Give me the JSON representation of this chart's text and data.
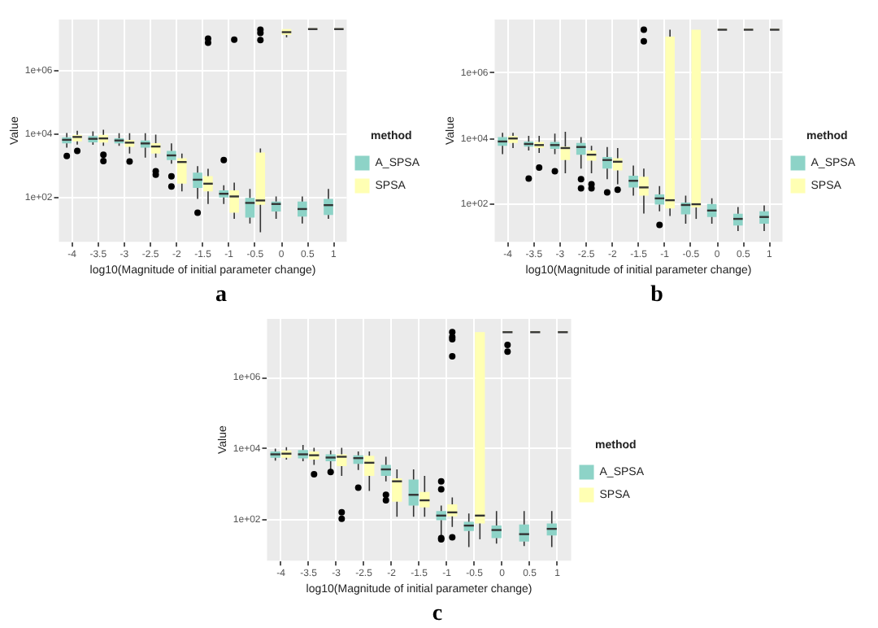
{
  "chart_data": [
    {
      "type": "box",
      "title": "a",
      "xlabel": "log10(Magnitude of initial parameter change)",
      "ylabel": "Value",
      "categories": [
        "-4",
        "-3.5",
        "-3",
        "-2.5",
        "-2",
        "-1.5",
        "-1",
        "-0.5",
        "0",
        "0.5",
        "1"
      ],
      "log": "y",
      "ylim": [
        4,
        40000000
      ],
      "yticks": [
        {
          "value": 100,
          "label": "1e+02"
        },
        {
          "value": 10000,
          "label": "1e+04"
        },
        {
          "value": 1000000,
          "label": "1e+06"
        }
      ],
      "grid": true,
      "legend": "right",
      "legend_title": "method",
      "series": [
        {
          "name": "A_SPSA",
          "color": "#8dd3c7",
          "boxes": [
            {
              "low": 3700,
              "q1": 5000,
              "median": 6500,
              "q3": 7800,
              "high": 10700,
              "outliers": [
                2000
              ]
            },
            {
              "low": 4500,
              "q1": 5400,
              "median": 7000,
              "q3": 8600,
              "high": 12000
            },
            {
              "low": 4200,
              "q1": 5000,
              "median": 6200,
              "q3": 7300,
              "high": 10500
            },
            {
              "low": 1800,
              "q1": 3700,
              "median": 5000,
              "q3": 6200,
              "high": 10500
            },
            {
              "low": 1150,
              "q1": 1500,
              "median": 2100,
              "q3": 2900,
              "high": 5000,
              "outliers": [
                460,
                220
              ]
            },
            {
              "low": 90,
              "q1": 200,
              "median": 360,
              "q3": 600,
              "high": 960,
              "outliers": [
                33
              ]
            },
            {
              "low": 62,
              "q1": 100,
              "median": 130,
              "q3": 166,
              "high": 240,
              "outliers": [
                1500
              ]
            },
            {
              "low": 15,
              "q1": 23,
              "median": 67,
              "q3": 96,
              "high": 185
            },
            {
              "low": 21,
              "q1": 36,
              "median": 62,
              "q3": 74,
              "high": 107
            },
            {
              "low": 15,
              "q1": 25,
              "median": 43,
              "q3": 74,
              "high": 107
            },
            {
              "low": 21,
              "q1": 28,
              "median": 57,
              "q3": 90,
              "high": 185
            }
          ]
        },
        {
          "name": "SPSA",
          "color": "#ffffb3",
          "boxes": [
            {
              "low": 4600,
              "q1": 5800,
              "median": 8000,
              "q3": 9300,
              "high": 12600,
              "outliers": [
                2900
              ]
            },
            {
              "low": 4200,
              "q1": 5300,
              "median": 7200,
              "q3": 9300,
              "high": 13500,
              "outliers": [
                2200,
                1400
              ]
            },
            {
              "low": 2400,
              "q1": 3900,
              "median": 5300,
              "q3": 6500,
              "high": 10500,
              "outliers": [
                1350
              ]
            },
            {
              "low": 1800,
              "q1": 2400,
              "median": 4000,
              "q3": 5100,
              "high": 9500,
              "outliers": [
                670,
                520
              ]
            },
            {
              "low": 155,
              "q1": 270,
              "median": 1300,
              "q3": 1700,
              "high": 2400
            },
            {
              "low": 62,
              "q1": 155,
              "median": 270,
              "q3": 470,
              "high": 800,
              "outliers": [
                10000000,
                7400000
              ]
            },
            {
              "low": 21,
              "q1": 33,
              "median": 107,
              "q3": 166,
              "high": 290,
              "outliers": [
                9300000
              ]
            },
            {
              "low": 8,
              "q1": 58,
              "median": 80,
              "q3": 2600,
              "high": 3500,
              "outliers": [
                19000000,
                15000000,
                9000000
              ]
            },
            {
              "low": 11000000,
              "q1": 13000000,
              "median": 16000000,
              "q3": 20000000,
              "high": 20000000
            },
            {
              "low": 20000000,
              "q1": 20000000,
              "median": 20000000,
              "q3": 20000000,
              "high": 20000000
            },
            {
              "low": 20000000,
              "q1": 20000000,
              "median": 20000000,
              "q3": 20000000,
              "high": 20000000
            }
          ]
        }
      ]
    },
    {
      "type": "box",
      "title": "b",
      "xlabel": "log10(Magnitude of initial parameter change)",
      "ylabel": "Value",
      "categories": [
        "-4",
        "-3.5",
        "-3",
        "-2.5",
        "-2",
        "-1.5",
        "-1",
        "-0.5",
        "0",
        "0.5",
        "1"
      ],
      "log": "y",
      "ylim": [
        7,
        43000000
      ],
      "yticks": [
        {
          "value": 100,
          "label": "1e+02"
        },
        {
          "value": 10000,
          "label": "1e+04"
        },
        {
          "value": 1000000,
          "label": "1e+06"
        }
      ],
      "grid": true,
      "legend": "right",
      "legend_title": "method",
      "series": [
        {
          "name": "A_SPSA",
          "color": "#8dd3c7",
          "boxes": [
            {
              "low": 3300,
              "q1": 6000,
              "median": 8100,
              "q3": 11000,
              "high": 15000
            },
            {
              "low": 4300,
              "q1": 5600,
              "median": 6800,
              "q3": 8100,
              "high": 12000,
              "outliers": [
                600
              ]
            },
            {
              "low": 3300,
              "q1": 4800,
              "median": 6300,
              "q3": 7800,
              "high": 14000,
              "outliers": [
                1000
              ]
            },
            {
              "low": 1200,
              "q1": 3200,
              "median": 5500,
              "q3": 7300,
              "high": 11000,
              "outliers": [
                570,
                300
              ]
            },
            {
              "low": 570,
              "q1": 1200,
              "median": 2200,
              "q3": 2700,
              "high": 5500,
              "outliers": [
                225
              ]
            },
            {
              "low": 180,
              "q1": 320,
              "median": 510,
              "q3": 730,
              "high": 1500
            },
            {
              "low": 60,
              "q1": 96,
              "median": 148,
              "q3": 195,
              "high": 350,
              "outliers": [
                23
              ]
            },
            {
              "low": 25,
              "q1": 48,
              "median": 93,
              "q3": 110,
              "high": 180
            },
            {
              "low": 25,
              "q1": 40,
              "median": 63,
              "q3": 100,
              "high": 150
            },
            {
              "low": 15,
              "q1": 22,
              "median": 35,
              "q3": 50,
              "high": 80
            },
            {
              "low": 15,
              "q1": 25,
              "median": 40,
              "q3": 60,
              "high": 90
            }
          ]
        },
        {
          "name": "SPSA",
          "color": "#ffffb3",
          "boxes": [
            {
              "low": 5100,
              "q1": 7300,
              "median": 10000,
              "q3": 12000,
              "high": 15000
            },
            {
              "low": 3600,
              "q1": 5100,
              "median": 6300,
              "q3": 7800,
              "high": 12000,
              "outliers": [
                1300
              ]
            },
            {
              "low": 870,
              "q1": 2200,
              "median": 5100,
              "q3": 5600,
              "high": 16000
            },
            {
              "low": 870,
              "q1": 2100,
              "median": 3200,
              "q3": 4300,
              "high": 6000,
              "outliers": [
                400,
                300
              ]
            },
            {
              "low": 400,
              "q1": 1050,
              "median": 1950,
              "q3": 2500,
              "high": 5100,
              "outliers": [
                270
              ]
            },
            {
              "low": 51,
              "q1": 180,
              "median": 320,
              "q3": 680,
              "high": 1200,
              "outliers": [
                21000000,
                9300000
              ]
            },
            {
              "low": 43,
              "q1": 73,
              "median": 130,
              "q3": 13000000,
              "high": 21000000
            },
            {
              "low": 35,
              "q1": 78,
              "median": 98,
              "q3": 21000000,
              "high": 21000000
            },
            {
              "low": 21000000,
              "q1": 21000000,
              "median": 21000000,
              "q3": 21000000,
              "high": 21000000
            },
            {
              "low": 21000000,
              "q1": 21000000,
              "median": 21000000,
              "q3": 21000000,
              "high": 21000000
            },
            {
              "low": 21000000,
              "q1": 21000000,
              "median": 21000000,
              "q3": 21000000,
              "high": 21000000
            }
          ]
        }
      ]
    },
    {
      "type": "box",
      "title": "c",
      "xlabel": "log10(Magnitude of initial parameter change)",
      "ylabel": "Value",
      "categories": [
        "-4",
        "-3.5",
        "-3",
        "-2.5",
        "-2",
        "-1.5",
        "-1",
        "-0.5",
        "0",
        "0.5",
        "1"
      ],
      "log": "y",
      "ylim": [
        7,
        45000000
      ],
      "yticks": [
        {
          "value": 100,
          "label": "1e+02"
        },
        {
          "value": 10000,
          "label": "1e+04"
        },
        {
          "value": 1000000,
          "label": "1e+06"
        }
      ],
      "grid": true,
      "legend": "right",
      "legend_title": "method",
      "series": [
        {
          "name": "A_SPSA",
          "color": "#8dd3c7",
          "boxes": [
            {
              "low": 4600,
              "q1": 5500,
              "median": 6900,
              "q3": 8300,
              "high": 10000
            },
            {
              "low": 4400,
              "q1": 5300,
              "median": 6900,
              "q3": 9100,
              "high": 12600
            },
            {
              "low": 2600,
              "q1": 4400,
              "median": 5600,
              "q3": 6900,
              "high": 8900,
              "outliers": [
                2200
              ]
            },
            {
              "low": 2500,
              "q1": 3700,
              "median": 5400,
              "q3": 6500,
              "high": 8300,
              "outliers": [
                790
              ]
            },
            {
              "low": 1200,
              "q1": 1700,
              "median": 2600,
              "q3": 3500,
              "high": 5900,
              "outliers": [
                500,
                350
              ]
            },
            {
              "low": 120,
              "q1": 250,
              "median": 500,
              "q3": 1350,
              "high": 2600
            },
            {
              "low": 36,
              "q1": 96,
              "median": 130,
              "q3": 175,
              "high": 250,
              "outliers": [
                1200,
                710,
                30,
                28
              ]
            },
            {
              "low": 17,
              "q1": 48,
              "median": 68,
              "q3": 87,
              "high": 148
            },
            {
              "low": 21,
              "q1": 30,
              "median": 51,
              "q3": 68,
              "high": 175
            },
            {
              "low": 18,
              "q1": 24,
              "median": 39,
              "q3": 73,
              "high": 175
            },
            {
              "low": 17,
              "q1": 36,
              "median": 55,
              "q3": 78,
              "high": 175
            }
          ]
        },
        {
          "name": "SPSA",
          "color": "#ffffb3",
          "boxes": [
            {
              "low": 4900,
              "q1": 5500,
              "median": 7200,
              "q3": 8900,
              "high": 11000
            },
            {
              "low": 3500,
              "q1": 4900,
              "median": 6500,
              "q3": 8300,
              "high": 10500,
              "outliers": [
                1900
              ]
            },
            {
              "low": 1700,
              "q1": 3200,
              "median": 5900,
              "q3": 6900,
              "high": 10500,
              "outliers": [
                160,
                105
              ]
            },
            {
              "low": 640,
              "q1": 1700,
              "median": 4000,
              "q3": 6300,
              "high": 8300
            },
            {
              "low": 120,
              "q1": 320,
              "median": 1200,
              "q3": 1450,
              "high": 2600
            },
            {
              "low": 120,
              "q1": 220,
              "median": 350,
              "q3": 600,
              "high": 1700
            },
            {
              "low": 62,
              "q1": 123,
              "median": 160,
              "q3": 270,
              "high": 420,
              "outliers": [
                19000000,
                14000000,
                12000000,
                4000000,
                32
              ]
            },
            {
              "low": 28,
              "q1": 78,
              "median": 130,
              "q3": 19000000,
              "high": 19000000
            },
            {
              "low": 19000000,
              "q1": 19000000,
              "median": 19000000,
              "q3": 19000000,
              "high": 19000000,
              "outliers": [
                8300000,
                5400000
              ]
            },
            {
              "low": 19000000,
              "q1": 19000000,
              "median": 19000000,
              "q3": 19000000,
              "high": 19000000
            },
            {
              "low": 19000000,
              "q1": 19000000,
              "median": 19000000,
              "q3": 19000000,
              "high": 19000000
            }
          ]
        }
      ]
    }
  ]
}
